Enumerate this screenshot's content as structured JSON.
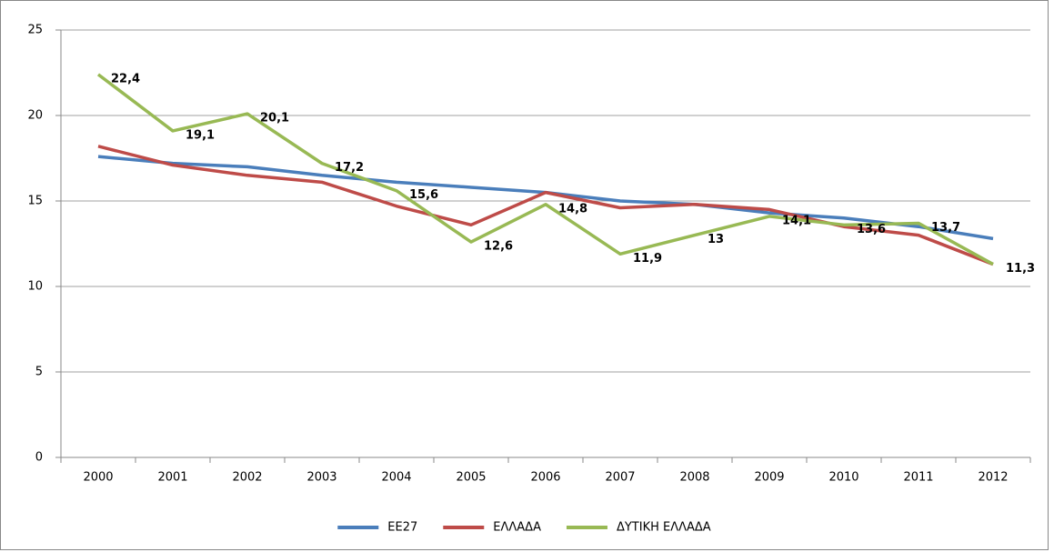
{
  "chart_data": {
    "type": "line",
    "categories": [
      "2000",
      "2001",
      "2002",
      "2003",
      "2004",
      "2005",
      "2006",
      "2007",
      "2008",
      "2009",
      "2010",
      "2011",
      "2012"
    ],
    "series": [
      {
        "name": "ΕΕ27",
        "color": "#4a7ebb",
        "values": [
          17.6,
          17.2,
          17.0,
          16.5,
          16.1,
          15.8,
          15.5,
          15.0,
          14.8,
          14.3,
          14.0,
          13.5,
          12.8
        ]
      },
      {
        "name": "ΕΛΛΑΔΑ",
        "color": "#be4b48",
        "values": [
          18.2,
          17.1,
          16.5,
          16.1,
          14.7,
          13.6,
          15.5,
          14.6,
          14.8,
          14.5,
          13.5,
          13.0,
          11.3
        ]
      },
      {
        "name": "ΔΥΤΙΚΗ ΕΛΛΑΔΑ",
        "color": "#98b954",
        "values": [
          22.4,
          19.1,
          20.1,
          17.2,
          15.6,
          12.6,
          14.8,
          11.9,
          13,
          14.1,
          13.6,
          13.7,
          11.3
        ],
        "value_labels": [
          "22,4",
          "19,1",
          "20,1",
          "17,2",
          "15,6",
          "12,6",
          "14,8",
          "11,9",
          "13",
          "14,1",
          "13,6",
          "13,7",
          "11,3"
        ]
      }
    ],
    "ylim": [
      0,
      25
    ],
    "yticks": [
      0,
      5,
      10,
      15,
      20,
      25
    ],
    "grid": true,
    "legend": "bottom"
  }
}
